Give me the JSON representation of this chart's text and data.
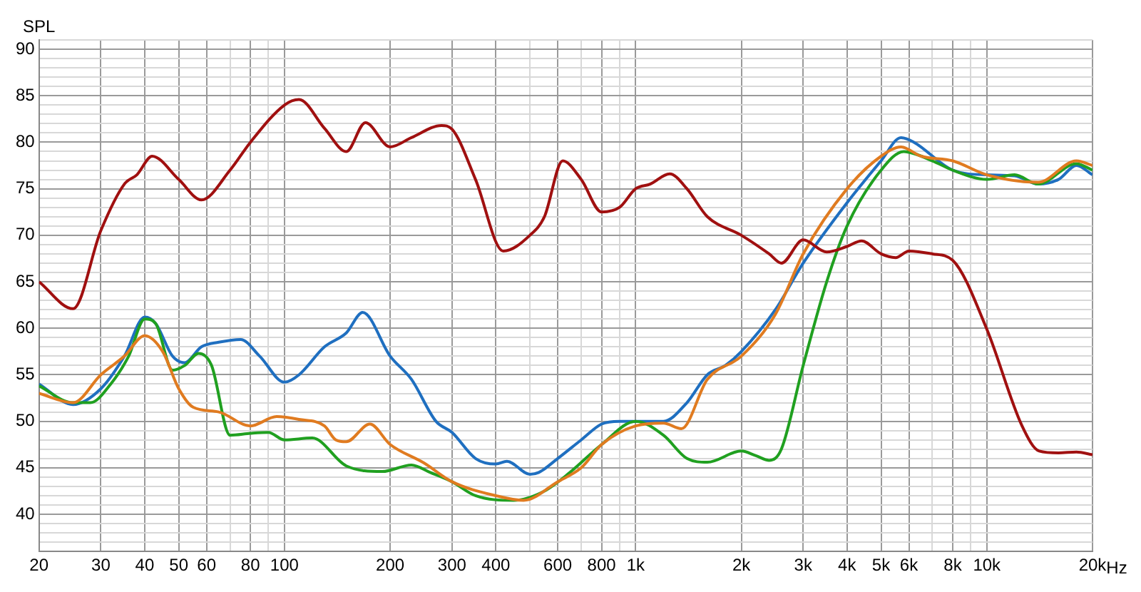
{
  "chart_data": {
    "type": "line",
    "ylabel": "SPL",
    "log": "x",
    "grid": true,
    "legend": false,
    "marker": "none",
    "line_style": "solid",
    "xlim": [
      20,
      20000
    ],
    "ylim": [
      36,
      91
    ],
    "xticks": [
      20,
      30,
      40,
      50,
      60,
      {
        "value": 70,
        "label": null
      },
      80,
      {
        "value": 90,
        "label": null
      },
      100,
      200,
      300,
      400,
      {
        "value": 500,
        "label": null
      },
      600,
      {
        "value": 700,
        "label": null
      },
      800,
      {
        "value": 900,
        "label": null
      },
      {
        "value": 1000,
        "label": "1k"
      },
      {
        "value": 2000,
        "label": "2k"
      },
      {
        "value": 3000,
        "label": "3k"
      },
      {
        "value": 4000,
        "label": "4k"
      },
      {
        "value": 5000,
        "label": "5k"
      },
      {
        "value": 6000,
        "label": "6k"
      },
      {
        "value": 7000,
        "label": null
      },
      {
        "value": 8000,
        "label": "8k"
      },
      {
        "value": 9000,
        "label": null
      },
      {
        "value": 10000,
        "label": "10k"
      },
      {
        "value": 20000,
        "label": "20k"
      }
    ],
    "xlabel": "Hz",
    "yticks": [
      {
        "value": 37,
        "label": null
      },
      {
        "value": 38,
        "label": null
      },
      {
        "value": 39,
        "label": null
      },
      40,
      {
        "value": 41,
        "label": null
      },
      {
        "value": 42,
        "label": null
      },
      {
        "value": 43,
        "label": null
      },
      {
        "value": 44,
        "label": null
      },
      45,
      {
        "value": 46,
        "label": null
      },
      {
        "value": 47,
        "label": null
      },
      {
        "value": 48,
        "label": null
      },
      {
        "value": 49,
        "label": null
      },
      50,
      {
        "value": 51,
        "label": null
      },
      {
        "value": 52,
        "label": null
      },
      {
        "value": 53,
        "label": null
      },
      {
        "value": 54,
        "label": null
      },
      55,
      {
        "value": 56,
        "label": null
      },
      {
        "value": 57,
        "label": null
      },
      {
        "value": 58,
        "label": null
      },
      {
        "value": 59,
        "label": null
      },
      60,
      {
        "value": 61,
        "label": null
      },
      {
        "value": 62,
        "label": null
      },
      {
        "value": 63,
        "label": null
      },
      {
        "value": 64,
        "label": null
      },
      65,
      {
        "value": 66,
        "label": null
      },
      {
        "value": 67,
        "label": null
      },
      {
        "value": 68,
        "label": null
      },
      {
        "value": 69,
        "label": null
      },
      70,
      {
        "value": 71,
        "label": null
      },
      {
        "value": 72,
        "label": null
      },
      {
        "value": 73,
        "label": null
      },
      {
        "value": 74,
        "label": null
      },
      75,
      {
        "value": 76,
        "label": null
      },
      {
        "value": 77,
        "label": null
      },
      {
        "value": 78,
        "label": null
      },
      {
        "value": 79,
        "label": null
      },
      80,
      {
        "value": 81,
        "label": null
      },
      {
        "value": 82,
        "label": null
      },
      {
        "value": 83,
        "label": null
      },
      {
        "value": 84,
        "label": null
      },
      85,
      {
        "value": 86,
        "label": null
      },
      {
        "value": 87,
        "label": null
      },
      {
        "value": 88,
        "label": null
      },
      {
        "value": 89,
        "label": null
      },
      90,
      {
        "value": 91,
        "label": null
      }
    ],
    "series": [
      {
        "color": "#a01010",
        "x": [
          20,
          25,
          30,
          35,
          38,
          42,
          50,
          58,
          70,
          80,
          100,
          110,
          130,
          150,
          170,
          200,
          230,
          280,
          300,
          350,
          420,
          500,
          550,
          620,
          700,
          800,
          900,
          1000,
          1100,
          1250,
          1400,
          1600,
          2000,
          2400,
          2600,
          3000,
          3500,
          4000,
          4400,
          5000,
          5500,
          6000,
          7000,
          8000,
          10000,
          12600,
          14100,
          16000,
          18000,
          20000
        ],
        "values": [
          65,
          62.1,
          70.5,
          75.5,
          76.5,
          78.5,
          76,
          73.8,
          77,
          80,
          84,
          84.6,
          81.5,
          79,
          82.1,
          79.5,
          80.5,
          81.8,
          81.4,
          76,
          68.3,
          70,
          72,
          78,
          76,
          72.5,
          73,
          75,
          75.5,
          76.6,
          75,
          72,
          70,
          68,
          67,
          69.5,
          68.2,
          68.8,
          69.4,
          68,
          67.6,
          68.3,
          68,
          67.3,
          59.9,
          49.5,
          46.8,
          46.6,
          46.7,
          46.4
        ]
      },
      {
        "color": "#e07b20",
        "x": [
          20,
          25,
          30,
          35,
          40,
          45,
          50,
          55,
          65,
          80,
          95,
          110,
          130,
          140,
          150,
          175,
          200,
          250,
          300,
          400,
          480,
          600,
          700,
          800,
          1000,
          1200,
          1350,
          1600,
          2000,
          2500,
          3000,
          4000,
          5000,
          5700,
          6500,
          8000,
          10000,
          14000,
          18000,
          20000
        ],
        "values": [
          53,
          52,
          55,
          57,
          59.2,
          57.5,
          53.5,
          51.5,
          51,
          49.5,
          50.5,
          50.2,
          49.5,
          48,
          47.8,
          49.7,
          47.5,
          45.5,
          43.5,
          42,
          41.5,
          43.5,
          45,
          47.5,
          49.5,
          49.8,
          49.2,
          54.5,
          57,
          61.5,
          68,
          75,
          78.5,
          79.5,
          78.5,
          78,
          76.5,
          75.7,
          78,
          77.5
        ]
      },
      {
        "color": "#20a020",
        "x": [
          20,
          25,
          28,
          32,
          36,
          40,
          43,
          48,
          52,
          57,
          62,
          70,
          80,
          90,
          100,
          120,
          150,
          190,
          230,
          260,
          300,
          350,
          450,
          550,
          650,
          800,
          1000,
          1200,
          1400,
          1600,
          2000,
          2200,
          2400,
          2600,
          3000,
          3500,
          4000,
          5000,
          5800,
          7000,
          8000,
          10000,
          12000,
          14000,
          18000,
          20000
        ],
        "values": [
          53.8,
          52,
          52,
          54,
          57,
          61,
          60.5,
          55.5,
          56,
          57.3,
          56,
          48.5,
          48.7,
          48.8,
          48,
          48.2,
          45.2,
          44.6,
          45.3,
          44.5,
          43.5,
          42,
          41.5,
          42.5,
          44.5,
          47.5,
          50,
          48.5,
          46,
          45.6,
          46.8,
          46.3,
          45.8,
          47,
          56,
          65,
          71,
          77,
          79,
          78,
          77,
          76,
          76.5,
          75.5,
          77.7,
          77
        ]
      },
      {
        "color": "#1f6fc0",
        "x": [
          20,
          25,
          30,
          35,
          40,
          43,
          48,
          52,
          58,
          65,
          75,
          85,
          100,
          110,
          130,
          150,
          167,
          200,
          230,
          270,
          300,
          350,
          400,
          430,
          500,
          530,
          600,
          700,
          800,
          900,
          1000,
          1200,
          1400,
          1600,
          1800,
          2000,
          2500,
          3000,
          4000,
          5000,
          5700,
          6200,
          8000,
          10000,
          12000,
          14000,
          16000,
          18000,
          20000
        ],
        "values": [
          54,
          51.8,
          53.5,
          57,
          61.2,
          60.5,
          57,
          56.3,
          58,
          58.5,
          58.8,
          57,
          54.2,
          55,
          58,
          59.5,
          61.7,
          57,
          54.5,
          50,
          48.8,
          46,
          45.4,
          45.7,
          44.3,
          44.5,
          46,
          48,
          49.7,
          50,
          50,
          50,
          52,
          55,
          56,
          57.5,
          62,
          67,
          73.5,
          78,
          80.5,
          80,
          77,
          76.5,
          76.4,
          75.5,
          76,
          77.5,
          76.5
        ]
      }
    ]
  }
}
